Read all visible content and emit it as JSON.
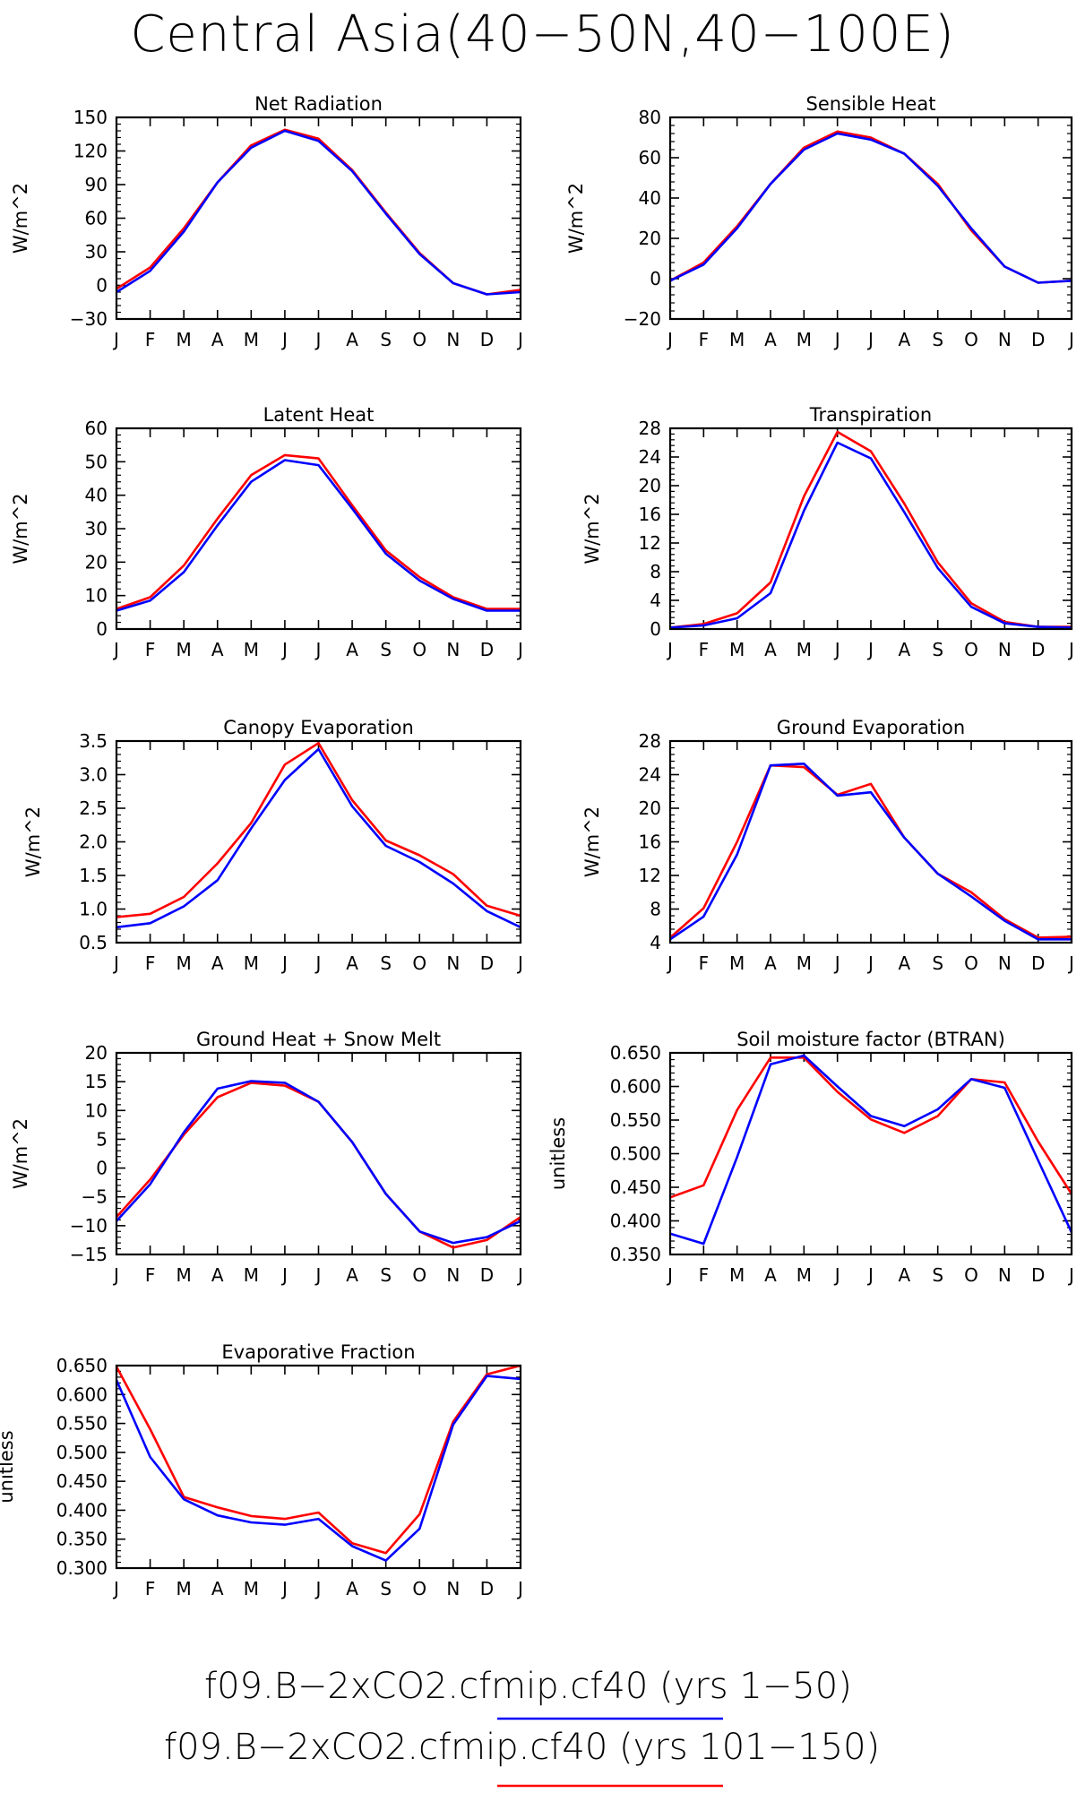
{
  "title": "Central Asia(40−50N,40−100E)",
  "colors": {
    "first": "#0000ff",
    "second": "#ff0000"
  },
  "legend": [
    {
      "label": "f09.B−2xCO2.cfmip.cf40 (yrs 1−50)",
      "color": "#0000ff"
    },
    {
      "label": "f09.B−2xCO2.cfmip.cf40 (yrs 101−150)",
      "color": "#ff0000"
    }
  ],
  "chart_data": [
    {
      "type": "line",
      "title": "Net Radiation",
      "ylabel": "W/m^2",
      "categories": [
        "J",
        "F",
        "M",
        "A",
        "M",
        "J",
        "J",
        "A",
        "S",
        "O",
        "N",
        "D",
        "J"
      ],
      "ylim": [
        -30,
        150
      ],
      "yticks": [
        "−30",
        "0",
        "30",
        "60",
        "90",
        "120",
        "150"
      ],
      "series": [
        {
          "color": "#ff0000",
          "values": [
            -3,
            16,
            51,
            92,
            125,
            139,
            131,
            103,
            65,
            29,
            2,
            -8,
            -4
          ]
        },
        {
          "color": "#0000ff",
          "values": [
            -6,
            13,
            48,
            92,
            123,
            138,
            129,
            102,
            64,
            28,
            2,
            -8,
            -6
          ]
        }
      ]
    },
    {
      "type": "line",
      "title": "Sensible Heat",
      "ylabel": "W/m^2",
      "categories": [
        "J",
        "F",
        "M",
        "A",
        "M",
        "J",
        "J",
        "A",
        "S",
        "O",
        "N",
        "D",
        "J"
      ],
      "ylim": [
        -20,
        80
      ],
      "yticks": [
        "−20",
        "0",
        "20",
        "40",
        "60",
        "80"
      ],
      "series": [
        {
          "color": "#ff0000",
          "values": [
            -1,
            8,
            26,
            47,
            65,
            73,
            70,
            62,
            47,
            24,
            6,
            -2,
            -1
          ]
        },
        {
          "color": "#0000ff",
          "values": [
            -1,
            7,
            25,
            47,
            64,
            72,
            69,
            62,
            46,
            25,
            6,
            -2,
            -1
          ]
        }
      ]
    },
    {
      "type": "line",
      "title": "Latent Heat",
      "ylabel": "W/m^2",
      "categories": [
        "J",
        "F",
        "M",
        "A",
        "M",
        "J",
        "J",
        "A",
        "S",
        "O",
        "N",
        "D",
        "J"
      ],
      "ylim": [
        0,
        60
      ],
      "yticks": [
        "0",
        "10",
        "20",
        "30",
        "40",
        "50",
        "60"
      ],
      "series": [
        {
          "color": "#ff0000",
          "values": [
            6,
            9.5,
            19,
            33,
            46,
            52,
            51,
            37,
            23.5,
            15.5,
            9.5,
            6,
            6
          ]
        },
        {
          "color": "#0000ff",
          "values": [
            5.5,
            8.5,
            17,
            31,
            44,
            50.5,
            49,
            36,
            22.5,
            14.5,
            9,
            5.5,
            5.5
          ]
        }
      ]
    },
    {
      "type": "line",
      "title": "Transpiration",
      "ylabel": "W/m^2",
      "categories": [
        "J",
        "F",
        "M",
        "A",
        "M",
        "J",
        "J",
        "A",
        "S",
        "O",
        "N",
        "D",
        "J"
      ],
      "ylim": [
        0,
        28
      ],
      "yticks": [
        "0",
        "4",
        "8",
        "12",
        "16",
        "20",
        "24",
        "28"
      ],
      "series": [
        {
          "color": "#ff0000",
          "values": [
            0.2,
            0.7,
            2.2,
            6.5,
            18.5,
            27.5,
            24.8,
            17.5,
            9.3,
            3.6,
            1,
            0.3,
            0.3
          ]
        },
        {
          "color": "#0000ff",
          "values": [
            0.2,
            0.5,
            1.5,
            5,
            16.5,
            26,
            23.8,
            16.3,
            8.5,
            3.1,
            0.8,
            0.3,
            0.2
          ]
        }
      ]
    },
    {
      "type": "line",
      "title": "Canopy Evaporation",
      "ylabel": "W/m^2",
      "categories": [
        "J",
        "F",
        "M",
        "A",
        "M",
        "J",
        "J",
        "A",
        "S",
        "O",
        "N",
        "D",
        "J"
      ],
      "ylim": [
        0.5,
        3.5
      ],
      "yticks": [
        "0.5",
        "1.0",
        "1.5",
        "2.0",
        "2.5",
        "3.0",
        "3.5"
      ],
      "series": [
        {
          "color": "#ff0000",
          "values": [
            0.88,
            0.93,
            1.18,
            1.68,
            2.28,
            3.15,
            3.47,
            2.62,
            2.02,
            1.8,
            1.52,
            1.05,
            0.9
          ]
        },
        {
          "color": "#0000ff",
          "values": [
            0.73,
            0.79,
            1.04,
            1.43,
            2.2,
            2.92,
            3.38,
            2.53,
            1.94,
            1.7,
            1.38,
            0.97,
            0.73
          ]
        }
      ]
    },
    {
      "type": "line",
      "title": "Ground Evaporation",
      "ylabel": "W/m^2",
      "categories": [
        "J",
        "F",
        "M",
        "A",
        "M",
        "J",
        "J",
        "A",
        "S",
        "O",
        "N",
        "D",
        "J"
      ],
      "ylim": [
        4,
        28
      ],
      "yticks": [
        "4",
        "8",
        "12",
        "16",
        "20",
        "24",
        "28"
      ],
      "series": [
        {
          "color": "#ff0000",
          "values": [
            4.6,
            8.1,
            16,
            25.1,
            24.9,
            21.6,
            22.9,
            16.5,
            12.2,
            10,
            6.8,
            4.6,
            4.7
          ]
        },
        {
          "color": "#0000ff",
          "values": [
            4.4,
            7.1,
            14.5,
            25.1,
            25.3,
            21.5,
            21.9,
            16.5,
            12.2,
            9.5,
            6.6,
            4.4,
            4.4
          ]
        }
      ]
    },
    {
      "type": "line",
      "title": "Ground Heat + Snow Melt",
      "ylabel": "W/m^2",
      "categories": [
        "J",
        "F",
        "M",
        "A",
        "M",
        "J",
        "J",
        "A",
        "S",
        "O",
        "N",
        "D",
        "J"
      ],
      "ylim": [
        -15,
        20
      ],
      "yticks": [
        "−15",
        "−10",
        "−5",
        "0",
        "5",
        "10",
        "15",
        "20"
      ],
      "series": [
        {
          "color": "#ff0000",
          "values": [
            -8.5,
            -2,
            5.8,
            12.3,
            14.8,
            14.3,
            11.5,
            4.5,
            -4.5,
            -11,
            -13.8,
            -12.5,
            -8.5
          ]
        },
        {
          "color": "#0000ff",
          "values": [
            -9.2,
            -2.8,
            6.2,
            13.8,
            15.1,
            14.8,
            11.5,
            4.5,
            -4.5,
            -11,
            -13,
            -12,
            -9.2
          ]
        }
      ]
    },
    {
      "type": "line",
      "title": "Soil moisture factor (BTRAN)",
      "ylabel": "unitless",
      "categories": [
        "J",
        "F",
        "M",
        "A",
        "M",
        "J",
        "J",
        "A",
        "S",
        "O",
        "N",
        "D",
        "J"
      ],
      "ylim": [
        0.35,
        0.65
      ],
      "yticks": [
        "0.350",
        "0.400",
        "0.450",
        "0.500",
        "0.550",
        "0.600",
        "0.650"
      ],
      "series": [
        {
          "color": "#ff0000",
          "values": [
            0.435,
            0.453,
            0.565,
            0.643,
            0.643,
            0.592,
            0.551,
            0.531,
            0.556,
            0.611,
            0.606,
            0.518,
            0.44
          ]
        },
        {
          "color": "#0000ff",
          "values": [
            0.381,
            0.366,
            0.495,
            0.633,
            0.646,
            0.6,
            0.556,
            0.541,
            0.566,
            0.611,
            0.598,
            0.49,
            0.383
          ]
        }
      ]
    },
    {
      "type": "line",
      "title": "Evaporative Fraction",
      "ylabel": "unitless",
      "categories": [
        "J",
        "F",
        "M",
        "A",
        "M",
        "J",
        "J",
        "A",
        "S",
        "O",
        "N",
        "D",
        "J"
      ],
      "ylim": [
        0.3,
        0.65
      ],
      "yticks": [
        "0.300",
        "0.350",
        "0.400",
        "0.450",
        "0.500",
        "0.550",
        "0.600",
        "0.650"
      ],
      "series": [
        {
          "color": "#ff0000",
          "values": [
            0.648,
            0.54,
            0.423,
            0.405,
            0.39,
            0.385,
            0.396,
            0.343,
            0.326,
            0.393,
            0.553,
            0.635,
            0.65
          ]
        },
        {
          "color": "#0000ff",
          "values": [
            0.625,
            0.492,
            0.419,
            0.391,
            0.379,
            0.375,
            0.385,
            0.338,
            0.313,
            0.368,
            0.548,
            0.632,
            0.627
          ]
        }
      ]
    }
  ]
}
